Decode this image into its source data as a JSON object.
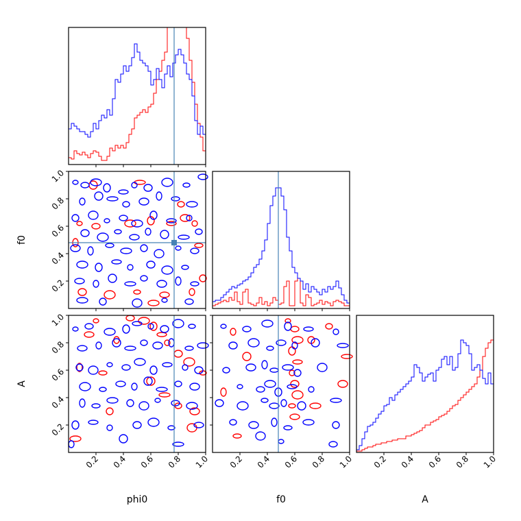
{
  "chart_data": {
    "type": "corner",
    "parameters": [
      "phi0",
      "f0",
      "A"
    ],
    "ranges": {
      "phi0": [
        0,
        1
      ],
      "f0": [
        0,
        1
      ],
      "A": [
        0,
        1
      ]
    },
    "ticks": {
      "phi0": [
        "0.2",
        "0.4",
        "0.6",
        "0.8",
        "1.0"
      ],
      "f0": [
        "0.2",
        "0.4",
        "0.6",
        "0.8",
        "1.0"
      ],
      "A": [
        "0.2",
        "0.4",
        "0.6",
        "0.8",
        "1.0"
      ]
    },
    "truth": {
      "phi0": 0.77,
      "f0": 0.48
    },
    "colors": {
      "run1": "#0000ff",
      "run2": "#ff0000",
      "truth": "#4682b4"
    },
    "histograms": {
      "phi0": {
        "bins": 50,
        "blue": [
          0.26,
          0.3,
          0.28,
          0.26,
          0.24,
          0.24,
          0.22,
          0.2,
          0.24,
          0.3,
          0.26,
          0.32,
          0.36,
          0.34,
          0.4,
          0.36,
          0.48,
          0.62,
          0.6,
          0.66,
          0.72,
          0.68,
          0.72,
          0.78,
          0.88,
          0.82,
          0.76,
          0.74,
          0.72,
          0.68,
          0.58,
          0.62,
          0.7,
          0.62,
          0.56,
          0.66,
          0.72,
          0.64,
          0.74,
          0.8,
          0.84,
          0.8,
          0.74,
          0.66,
          0.62,
          0.5,
          0.32,
          0.22,
          0.28,
          0.22
        ],
        "red": [
          0.05,
          0.04,
          0.1,
          0.08,
          0.07,
          0.09,
          0.07,
          0.05,
          0.08,
          0.1,
          0.09,
          0.06,
          0.03,
          0.03,
          0.06,
          0.12,
          0.1,
          0.14,
          0.12,
          0.14,
          0.12,
          0.16,
          0.22,
          0.26,
          0.34,
          0.36,
          0.38,
          0.4,
          0.38,
          0.42,
          0.44,
          0.52,
          0.62,
          0.68,
          0.76,
          0.82,
          1.0,
          1.08,
          1.02,
          1.0,
          1.0,
          1.03,
          1.04,
          0.92,
          0.76,
          0.6,
          0.44,
          0.3,
          0.2,
          0.1
        ]
      },
      "f0": {
        "bins": 50,
        "blue": [
          0.05,
          0.06,
          0.06,
          0.08,
          0.1,
          0.12,
          0.14,
          0.16,
          0.15,
          0.17,
          0.18,
          0.2,
          0.21,
          0.23,
          0.26,
          0.3,
          0.32,
          0.36,
          0.42,
          0.5,
          0.62,
          0.75,
          0.82,
          0.88,
          0.88,
          0.82,
          0.72,
          0.52,
          0.42,
          0.3,
          0.26,
          0.22,
          0.2,
          0.14,
          0.18,
          0.12,
          0.16,
          0.14,
          0.12,
          0.1,
          0.14,
          0.12,
          0.16,
          0.14,
          0.16,
          0.2,
          0.15,
          0.1,
          0.06,
          0.04
        ],
        "red": [
          0.02,
          0.03,
          0.04,
          0.05,
          0.06,
          0.05,
          0.08,
          0.06,
          0.12,
          0.05,
          0.03,
          0.12,
          0.14,
          0.04,
          0.03,
          0.02,
          0.04,
          0.08,
          0.03,
          0.05,
          0.02,
          0.04,
          0.08,
          0.06,
          0.03,
          0.04,
          0.16,
          0.2,
          0.02,
          0.02,
          0.2,
          0.22,
          0.04,
          0.02,
          0.1,
          0.08,
          0.02,
          0.03,
          0.04,
          0.06,
          0.03,
          0.05,
          0.04,
          0.02,
          0.05,
          0.06,
          0.05,
          0.04,
          0.02,
          0.02
        ]
      },
      "A": {
        "bins": 50,
        "blue": [
          0.02,
          0.05,
          0.1,
          0.15,
          0.19,
          0.2,
          0.22,
          0.25,
          0.28,
          0.3,
          0.34,
          0.35,
          0.4,
          0.38,
          0.42,
          0.44,
          0.46,
          0.48,
          0.5,
          0.52,
          0.55,
          0.64,
          0.62,
          0.58,
          0.52,
          0.55,
          0.57,
          0.58,
          0.52,
          0.6,
          0.62,
          0.68,
          0.7,
          0.64,
          0.7,
          0.6,
          0.62,
          0.72,
          0.82,
          0.8,
          0.78,
          0.72,
          0.6,
          0.62,
          0.64,
          0.6,
          0.54,
          0.5,
          0.58,
          0.5
        ],
        "red": [
          0.01,
          0.01,
          0.02,
          0.03,
          0.04,
          0.04,
          0.05,
          0.06,
          0.06,
          0.07,
          0.07,
          0.08,
          0.08,
          0.09,
          0.09,
          0.1,
          0.1,
          0.1,
          0.12,
          0.12,
          0.13,
          0.14,
          0.15,
          0.16,
          0.18,
          0.2,
          0.2,
          0.22,
          0.23,
          0.24,
          0.26,
          0.27,
          0.28,
          0.3,
          0.32,
          0.34,
          0.35,
          0.38,
          0.4,
          0.42,
          0.44,
          0.46,
          0.48,
          0.5,
          0.55,
          0.6,
          0.7,
          0.76,
          0.8,
          0.82
        ]
      }
    },
    "scatter_2d": {
      "f0_vs_phi0": {
        "blue": [
          [
            0.05,
            0.92
          ],
          [
            0.12,
            0.9
          ],
          [
            0.2,
            0.92
          ],
          [
            0.28,
            0.88
          ],
          [
            0.4,
            0.85
          ],
          [
            0.48,
            0.9
          ],
          [
            0.58,
            0.88
          ],
          [
            0.72,
            0.92
          ],
          [
            0.86,
            0.9
          ],
          [
            0.98,
            0.96
          ],
          [
            0.1,
            0.78
          ],
          [
            0.22,
            0.82
          ],
          [
            0.32,
            0.8
          ],
          [
            0.42,
            0.76
          ],
          [
            0.55,
            0.78
          ],
          [
            0.66,
            0.82
          ],
          [
            0.78,
            0.8
          ],
          [
            0.9,
            0.76
          ],
          [
            0.05,
            0.66
          ],
          [
            0.18,
            0.68
          ],
          [
            0.28,
            0.64
          ],
          [
            0.4,
            0.66
          ],
          [
            0.5,
            0.62
          ],
          [
            0.62,
            0.68
          ],
          [
            0.75,
            0.64
          ],
          [
            0.88,
            0.66
          ],
          [
            0.12,
            0.55
          ],
          [
            0.25,
            0.52
          ],
          [
            0.36,
            0.56
          ],
          [
            0.48,
            0.52
          ],
          [
            0.58,
            0.56
          ],
          [
            0.7,
            0.54
          ],
          [
            0.84,
            0.52
          ],
          [
            0.95,
            0.56
          ],
          [
            0.05,
            0.44
          ],
          [
            0.16,
            0.42
          ],
          [
            0.3,
            0.46
          ],
          [
            0.42,
            0.42
          ],
          [
            0.55,
            0.44
          ],
          [
            0.66,
            0.4
          ],
          [
            0.8,
            0.44
          ],
          [
            0.92,
            0.42
          ],
          [
            0.1,
            0.32
          ],
          [
            0.22,
            0.3
          ],
          [
            0.35,
            0.34
          ],
          [
            0.45,
            0.3
          ],
          [
            0.6,
            0.32
          ],
          [
            0.72,
            0.28
          ],
          [
            0.85,
            0.3
          ],
          [
            0.08,
            0.2
          ],
          [
            0.2,
            0.18
          ],
          [
            0.32,
            0.22
          ],
          [
            0.45,
            0.18
          ],
          [
            0.55,
            0.22
          ],
          [
            0.68,
            0.18
          ],
          [
            0.8,
            0.2
          ],
          [
            0.92,
            0.18
          ],
          [
            0.1,
            0.06
          ],
          [
            0.25,
            0.05
          ],
          [
            0.5,
            0.04
          ],
          [
            0.7,
            0.06
          ],
          [
            0.88,
            0.05
          ]
        ],
        "red": [
          [
            0.08,
            0.62
          ],
          [
            0.2,
            0.6
          ],
          [
            0.45,
            0.62
          ],
          [
            0.6,
            0.64
          ],
          [
            0.75,
            0.62
          ],
          [
            0.92,
            0.62
          ],
          [
            0.1,
            0.12
          ],
          [
            0.3,
            0.1
          ],
          [
            0.5,
            0.12
          ],
          [
            0.7,
            0.1
          ],
          [
            0.9,
            0.12
          ],
          [
            0.18,
            0.9
          ],
          [
            0.52,
            0.92
          ],
          [
            0.82,
            0.76
          ],
          [
            0.85,
            0.66
          ],
          [
            0.05,
            0.48
          ],
          [
            0.95,
            0.46
          ],
          [
            0.62,
            0.04
          ],
          [
            0.98,
            0.22
          ]
        ]
      },
      "A_vs_phi0": {
        "blue": [
          [
            0.05,
            0.9
          ],
          [
            0.15,
            0.92
          ],
          [
            0.3,
            0.88
          ],
          [
            0.42,
            0.9
          ],
          [
            0.5,
            0.94
          ],
          [
            0.6,
            0.92
          ],
          [
            0.7,
            0.9
          ],
          [
            0.8,
            0.94
          ],
          [
            0.9,
            0.92
          ],
          [
            0.1,
            0.76
          ],
          [
            0.22,
            0.78
          ],
          [
            0.35,
            0.8
          ],
          [
            0.45,
            0.76
          ],
          [
            0.55,
            0.8
          ],
          [
            0.65,
            0.78
          ],
          [
            0.75,
            0.8
          ],
          [
            0.88,
            0.76
          ],
          [
            0.98,
            0.78
          ],
          [
            0.08,
            0.62
          ],
          [
            0.18,
            0.6
          ],
          [
            0.3,
            0.64
          ],
          [
            0.42,
            0.62
          ],
          [
            0.52,
            0.66
          ],
          [
            0.62,
            0.6
          ],
          [
            0.72,
            0.64
          ],
          [
            0.85,
            0.62
          ],
          [
            0.95,
            0.6
          ],
          [
            0.12,
            0.48
          ],
          [
            0.25,
            0.46
          ],
          [
            0.38,
            0.5
          ],
          [
            0.48,
            0.48
          ],
          [
            0.58,
            0.52
          ],
          [
            0.68,
            0.46
          ],
          [
            0.8,
            0.5
          ],
          [
            0.92,
            0.48
          ],
          [
            0.1,
            0.36
          ],
          [
            0.2,
            0.34
          ],
          [
            0.32,
            0.38
          ],
          [
            0.45,
            0.36
          ],
          [
            0.55,
            0.34
          ],
          [
            0.65,
            0.38
          ],
          [
            0.78,
            0.36
          ],
          [
            0.9,
            0.34
          ],
          [
            0.05,
            0.2
          ],
          [
            0.18,
            0.22
          ],
          [
            0.3,
            0.18
          ],
          [
            0.5,
            0.2
          ],
          [
            0.62,
            0.22
          ],
          [
            0.75,
            0.18
          ],
          [
            0.95,
            0.2
          ],
          [
            0.02,
            0.06
          ],
          [
            0.4,
            0.1
          ],
          [
            0.8,
            0.06
          ]
        ],
        "red": [
          [
            0.2,
            0.96
          ],
          [
            0.45,
            0.98
          ],
          [
            0.55,
            0.96
          ],
          [
            0.62,
            0.92
          ],
          [
            0.68,
            0.86
          ],
          [
            0.72,
            0.8
          ],
          [
            0.8,
            0.72
          ],
          [
            0.88,
            0.66
          ],
          [
            0.98,
            0.58
          ],
          [
            0.15,
            0.86
          ],
          [
            0.35,
            0.82
          ],
          [
            0.6,
            0.52
          ],
          [
            0.7,
            0.42
          ],
          [
            0.8,
            0.34
          ],
          [
            0.92,
            0.3
          ],
          [
            0.08,
            0.62
          ],
          [
            0.25,
            0.58
          ],
          [
            0.05,
            0.1
          ],
          [
            0.3,
            0.3
          ],
          [
            0.9,
            0.18
          ]
        ]
      },
      "A_vs_f0": {
        "blue": [
          [
            0.08,
            0.92
          ],
          [
            0.25,
            0.9
          ],
          [
            0.4,
            0.94
          ],
          [
            0.55,
            0.92
          ],
          [
            0.7,
            0.9
          ],
          [
            0.9,
            0.88
          ],
          [
            0.15,
            0.78
          ],
          [
            0.3,
            0.8
          ],
          [
            0.42,
            0.76
          ],
          [
            0.5,
            0.8
          ],
          [
            0.6,
            0.78
          ],
          [
            0.75,
            0.8
          ],
          [
            0.95,
            0.78
          ],
          [
            0.1,
            0.6
          ],
          [
            0.28,
            0.62
          ],
          [
            0.38,
            0.64
          ],
          [
            0.45,
            0.6
          ],
          [
            0.55,
            0.62
          ],
          [
            0.62,
            0.58
          ],
          [
            0.8,
            0.62
          ],
          [
            0.2,
            0.48
          ],
          [
            0.35,
            0.46
          ],
          [
            0.42,
            0.5
          ],
          [
            0.48,
            0.44
          ],
          [
            0.58,
            0.48
          ],
          [
            0.72,
            0.46
          ],
          [
            0.05,
            0.36
          ],
          [
            0.22,
            0.34
          ],
          [
            0.38,
            0.38
          ],
          [
            0.45,
            0.34
          ],
          [
            0.52,
            0.36
          ],
          [
            0.65,
            0.34
          ],
          [
            0.9,
            0.38
          ],
          [
            0.15,
            0.22
          ],
          [
            0.3,
            0.2
          ],
          [
            0.45,
            0.22
          ],
          [
            0.55,
            0.18
          ],
          [
            0.7,
            0.22
          ],
          [
            0.9,
            0.2
          ],
          [
            0.35,
            0.12
          ],
          [
            0.5,
            0.08
          ],
          [
            0.88,
            0.06
          ]
        ],
        "red": [
          [
            0.55,
            0.96
          ],
          [
            0.6,
            0.9
          ],
          [
            0.62,
            0.82
          ],
          [
            0.58,
            0.74
          ],
          [
            0.62,
            0.66
          ],
          [
            0.58,
            0.58
          ],
          [
            0.6,
            0.5
          ],
          [
            0.62,
            0.42
          ],
          [
            0.58,
            0.34
          ],
          [
            0.6,
            0.26
          ],
          [
            0.15,
            0.88
          ],
          [
            0.25,
            0.7
          ],
          [
            0.98,
            0.7
          ],
          [
            0.85,
            0.92
          ],
          [
            0.95,
            0.5
          ],
          [
            0.08,
            0.44
          ],
          [
            0.18,
            0.12
          ],
          [
            0.75,
            0.34
          ],
          [
            0.72,
            0.82
          ]
        ]
      }
    }
  },
  "axis_labels": {
    "phi0": "phi0",
    "f0": "f0",
    "A": "A"
  }
}
